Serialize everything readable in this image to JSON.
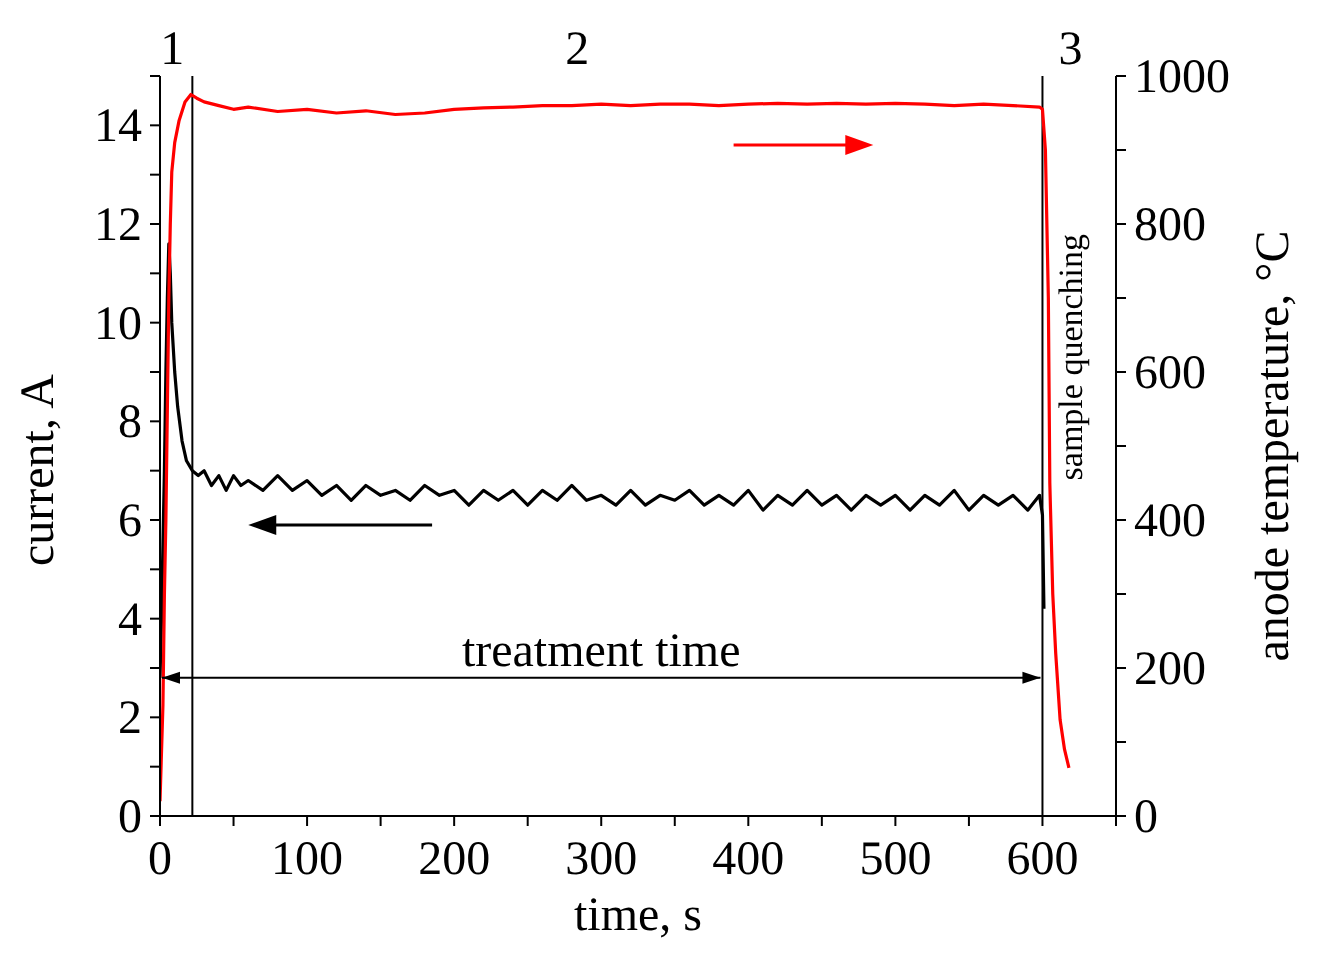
{
  "chart_data": {
    "type": "line",
    "xlabel": "time, s",
    "ylabel": "current, A",
    "y2label": "anode temperature, °C",
    "xlim": [
      0,
      650
    ],
    "xticks": [
      0,
      {
        "value": 50,
        "label": null
      },
      100,
      {
        "value": 150,
        "label": null
      },
      200,
      {
        "value": 250,
        "label": null
      },
      300,
      {
        "value": 350,
        "label": null
      },
      400,
      {
        "value": 450,
        "label": null
      },
      500,
      {
        "value": 550,
        "label": null
      },
      600,
      {
        "value": 650,
        "label": null
      }
    ],
    "ylim": [
      0,
      15
    ],
    "yticks": [
      0,
      {
        "value": 1,
        "label": null
      },
      2,
      {
        "value": 3,
        "label": null
      },
      4,
      {
        "value": 5,
        "label": null
      },
      6,
      {
        "value": 7,
        "label": null
      },
      8,
      {
        "value": 9,
        "label": null
      },
      10,
      {
        "value": 11,
        "label": null
      },
      12,
      {
        "value": 13,
        "label": null
      },
      14,
      {
        "value": 15,
        "label": null
      }
    ],
    "y2lim": [
      0,
      1000
    ],
    "y2ticks": [
      0,
      {
        "value": 100,
        "label": null
      },
      200,
      {
        "value": 300,
        "label": null
      },
      400,
      {
        "value": 500,
        "label": null
      },
      600,
      {
        "value": 700,
        "label": null
      },
      800,
      {
        "value": 900,
        "label": null
      },
      1000
    ],
    "marker": "none",
    "line_style": "solid",
    "series": [
      {
        "color": "#000000",
        "axis": "y",
        "x": [
          0,
          1,
          2,
          3,
          4,
          5,
          6,
          7,
          8,
          10,
          12,
          15,
          18,
          22,
          26,
          30,
          35,
          40,
          45,
          50,
          55,
          60,
          70,
          80,
          90,
          100,
          110,
          120,
          130,
          140,
          150,
          160,
          170,
          180,
          190,
          200,
          210,
          220,
          230,
          240,
          250,
          260,
          270,
          280,
          290,
          300,
          310,
          320,
          330,
          340,
          350,
          360,
          370,
          380,
          390,
          400,
          410,
          420,
          430,
          440,
          450,
          460,
          470,
          480,
          490,
          500,
          510,
          520,
          530,
          540,
          550,
          560,
          570,
          580,
          590,
          598,
          600,
          601
        ],
        "values": [
          2.8,
          4,
          5.5,
          7,
          9,
          10.5,
          11.6,
          11,
          10,
          9,
          8.3,
          7.6,
          7.2,
          7.0,
          6.9,
          7.0,
          6.7,
          6.9,
          6.6,
          6.9,
          6.7,
          6.8,
          6.6,
          6.9,
          6.6,
          6.8,
          6.5,
          6.7,
          6.4,
          6.7,
          6.5,
          6.6,
          6.4,
          6.7,
          6.5,
          6.6,
          6.3,
          6.6,
          6.4,
          6.6,
          6.3,
          6.6,
          6.4,
          6.7,
          6.4,
          6.5,
          6.3,
          6.6,
          6.3,
          6.5,
          6.4,
          6.6,
          6.3,
          6.5,
          6.3,
          6.6,
          6.2,
          6.5,
          6.3,
          6.6,
          6.3,
          6.5,
          6.2,
          6.5,
          6.3,
          6.5,
          6.2,
          6.5,
          6.3,
          6.6,
          6.2,
          6.5,
          6.3,
          6.5,
          6.2,
          6.5,
          6.1,
          4.2
        ]
      },
      {
        "color": "#ff0000",
        "axis": "y2",
        "x": [
          0,
          2,
          3,
          4,
          5,
          6,
          7,
          8,
          10,
          13,
          17,
          21,
          25,
          30,
          40,
          50,
          60,
          80,
          100,
          120,
          140,
          160,
          180,
          200,
          220,
          240,
          260,
          280,
          300,
          320,
          340,
          360,
          380,
          400,
          420,
          440,
          460,
          480,
          500,
          520,
          540,
          560,
          580,
          598,
          600,
          602,
          604,
          605,
          607,
          609,
          612,
          615,
          618
        ],
        "values": [
          20,
          150,
          300,
          400,
          550,
          700,
          800,
          870,
          910,
          940,
          965,
          975,
          970,
          965,
          960,
          955,
          958,
          952,
          955,
          950,
          953,
          948,
          950,
          955,
          957,
          958,
          960,
          960,
          962,
          960,
          962,
          962,
          960,
          962,
          963,
          962,
          963,
          962,
          963,
          962,
          960,
          962,
          960,
          958,
          955,
          900,
          700,
          450,
          300,
          220,
          130,
          90,
          65
        ]
      }
    ],
    "ref_lines": [
      {
        "axis": "x",
        "value": 22,
        "color": "#000000"
      },
      {
        "axis": "x",
        "value": 600,
        "color": "#000000"
      }
    ],
    "annotations": [
      "2",
      "treatment time",
      "sample quenching",
      "1",
      "3"
    ]
  }
}
